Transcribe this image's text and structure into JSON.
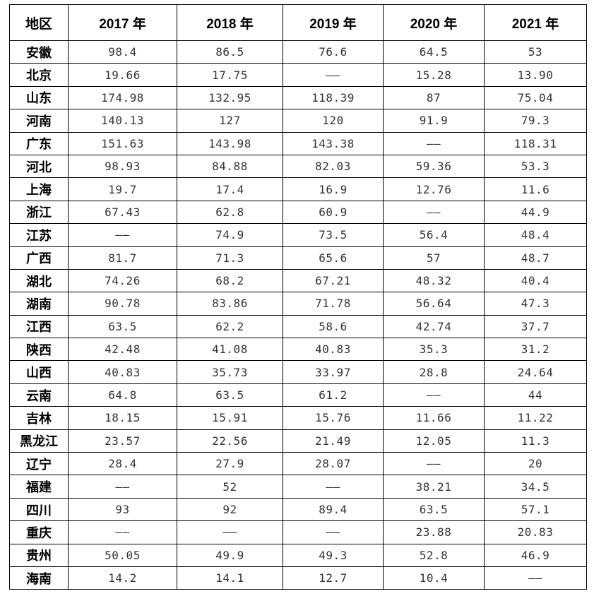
{
  "table": {
    "headers": [
      "地区",
      "2017 年",
      "2018 年",
      "2019 年",
      "2020 年",
      "2021 年"
    ],
    "rows": [
      [
        "安徽",
        "98.4",
        "86.5",
        "76.6",
        "64.5",
        "53"
      ],
      [
        "北京",
        "19.66",
        "17.75",
        "——",
        "15.28",
        "13.90"
      ],
      [
        "山东",
        "174.98",
        "132.95",
        "118.39",
        "87",
        "75.04"
      ],
      [
        "河南",
        "140.13",
        "127",
        "120",
        "91.9",
        "79.3"
      ],
      [
        "广东",
        "151.63",
        "143.98",
        "143.38",
        "——",
        "118.31"
      ],
      [
        "河北",
        "98.93",
        "84.88",
        "82.03",
        "59.36",
        "53.3"
      ],
      [
        "上海",
        "19.7",
        "17.4",
        "16.9",
        "12.76",
        "11.6"
      ],
      [
        "浙江",
        "67.43",
        "62.8",
        "60.9",
        "——",
        "44.9"
      ],
      [
        "江苏",
        "——",
        "74.9",
        "73.5",
        "56.4",
        "48.4"
      ],
      [
        "广西",
        "81.7",
        "71.3",
        "65.6",
        "57",
        "48.7"
      ],
      [
        "湖北",
        "74.26",
        "68.2",
        "67.21",
        "48.32",
        "40.4"
      ],
      [
        "湖南",
        "90.78",
        "83.86",
        "71.78",
        "56.64",
        "47.3"
      ],
      [
        "江西",
        "63.5",
        "62.2",
        "58.6",
        "42.74",
        "37.7"
      ],
      [
        "陕西",
        "42.48",
        "41.08",
        "40.83",
        "35.3",
        "31.2"
      ],
      [
        "山西",
        "40.83",
        "35.73",
        "33.97",
        "28.8",
        "24.64"
      ],
      [
        "云南",
        "64.8",
        "63.5",
        "61.2",
        "——",
        "44"
      ],
      [
        "吉林",
        "18.15",
        "15.91",
        "15.76",
        "11.66",
        "11.22"
      ],
      [
        "黑龙江",
        "23.57",
        "22.56",
        "21.49",
        "12.05",
        "11.3"
      ],
      [
        "辽宁",
        "28.4",
        "27.9",
        "28.07",
        "——",
        "20"
      ],
      [
        "福建",
        "——",
        "52",
        "——",
        "38.21",
        "34.5"
      ],
      [
        "四川",
        "93",
        "92",
        "89.4",
        "63.5",
        "57.1"
      ],
      [
        "重庆",
        "——",
        "——",
        "——",
        "23.88",
        "20.83"
      ],
      [
        "贵州",
        "50.05",
        "49.9",
        "49.3",
        "52.8",
        "46.9"
      ],
      [
        "海南",
        "14.2",
        "14.1",
        "12.7",
        "10.4",
        "——"
      ]
    ]
  }
}
